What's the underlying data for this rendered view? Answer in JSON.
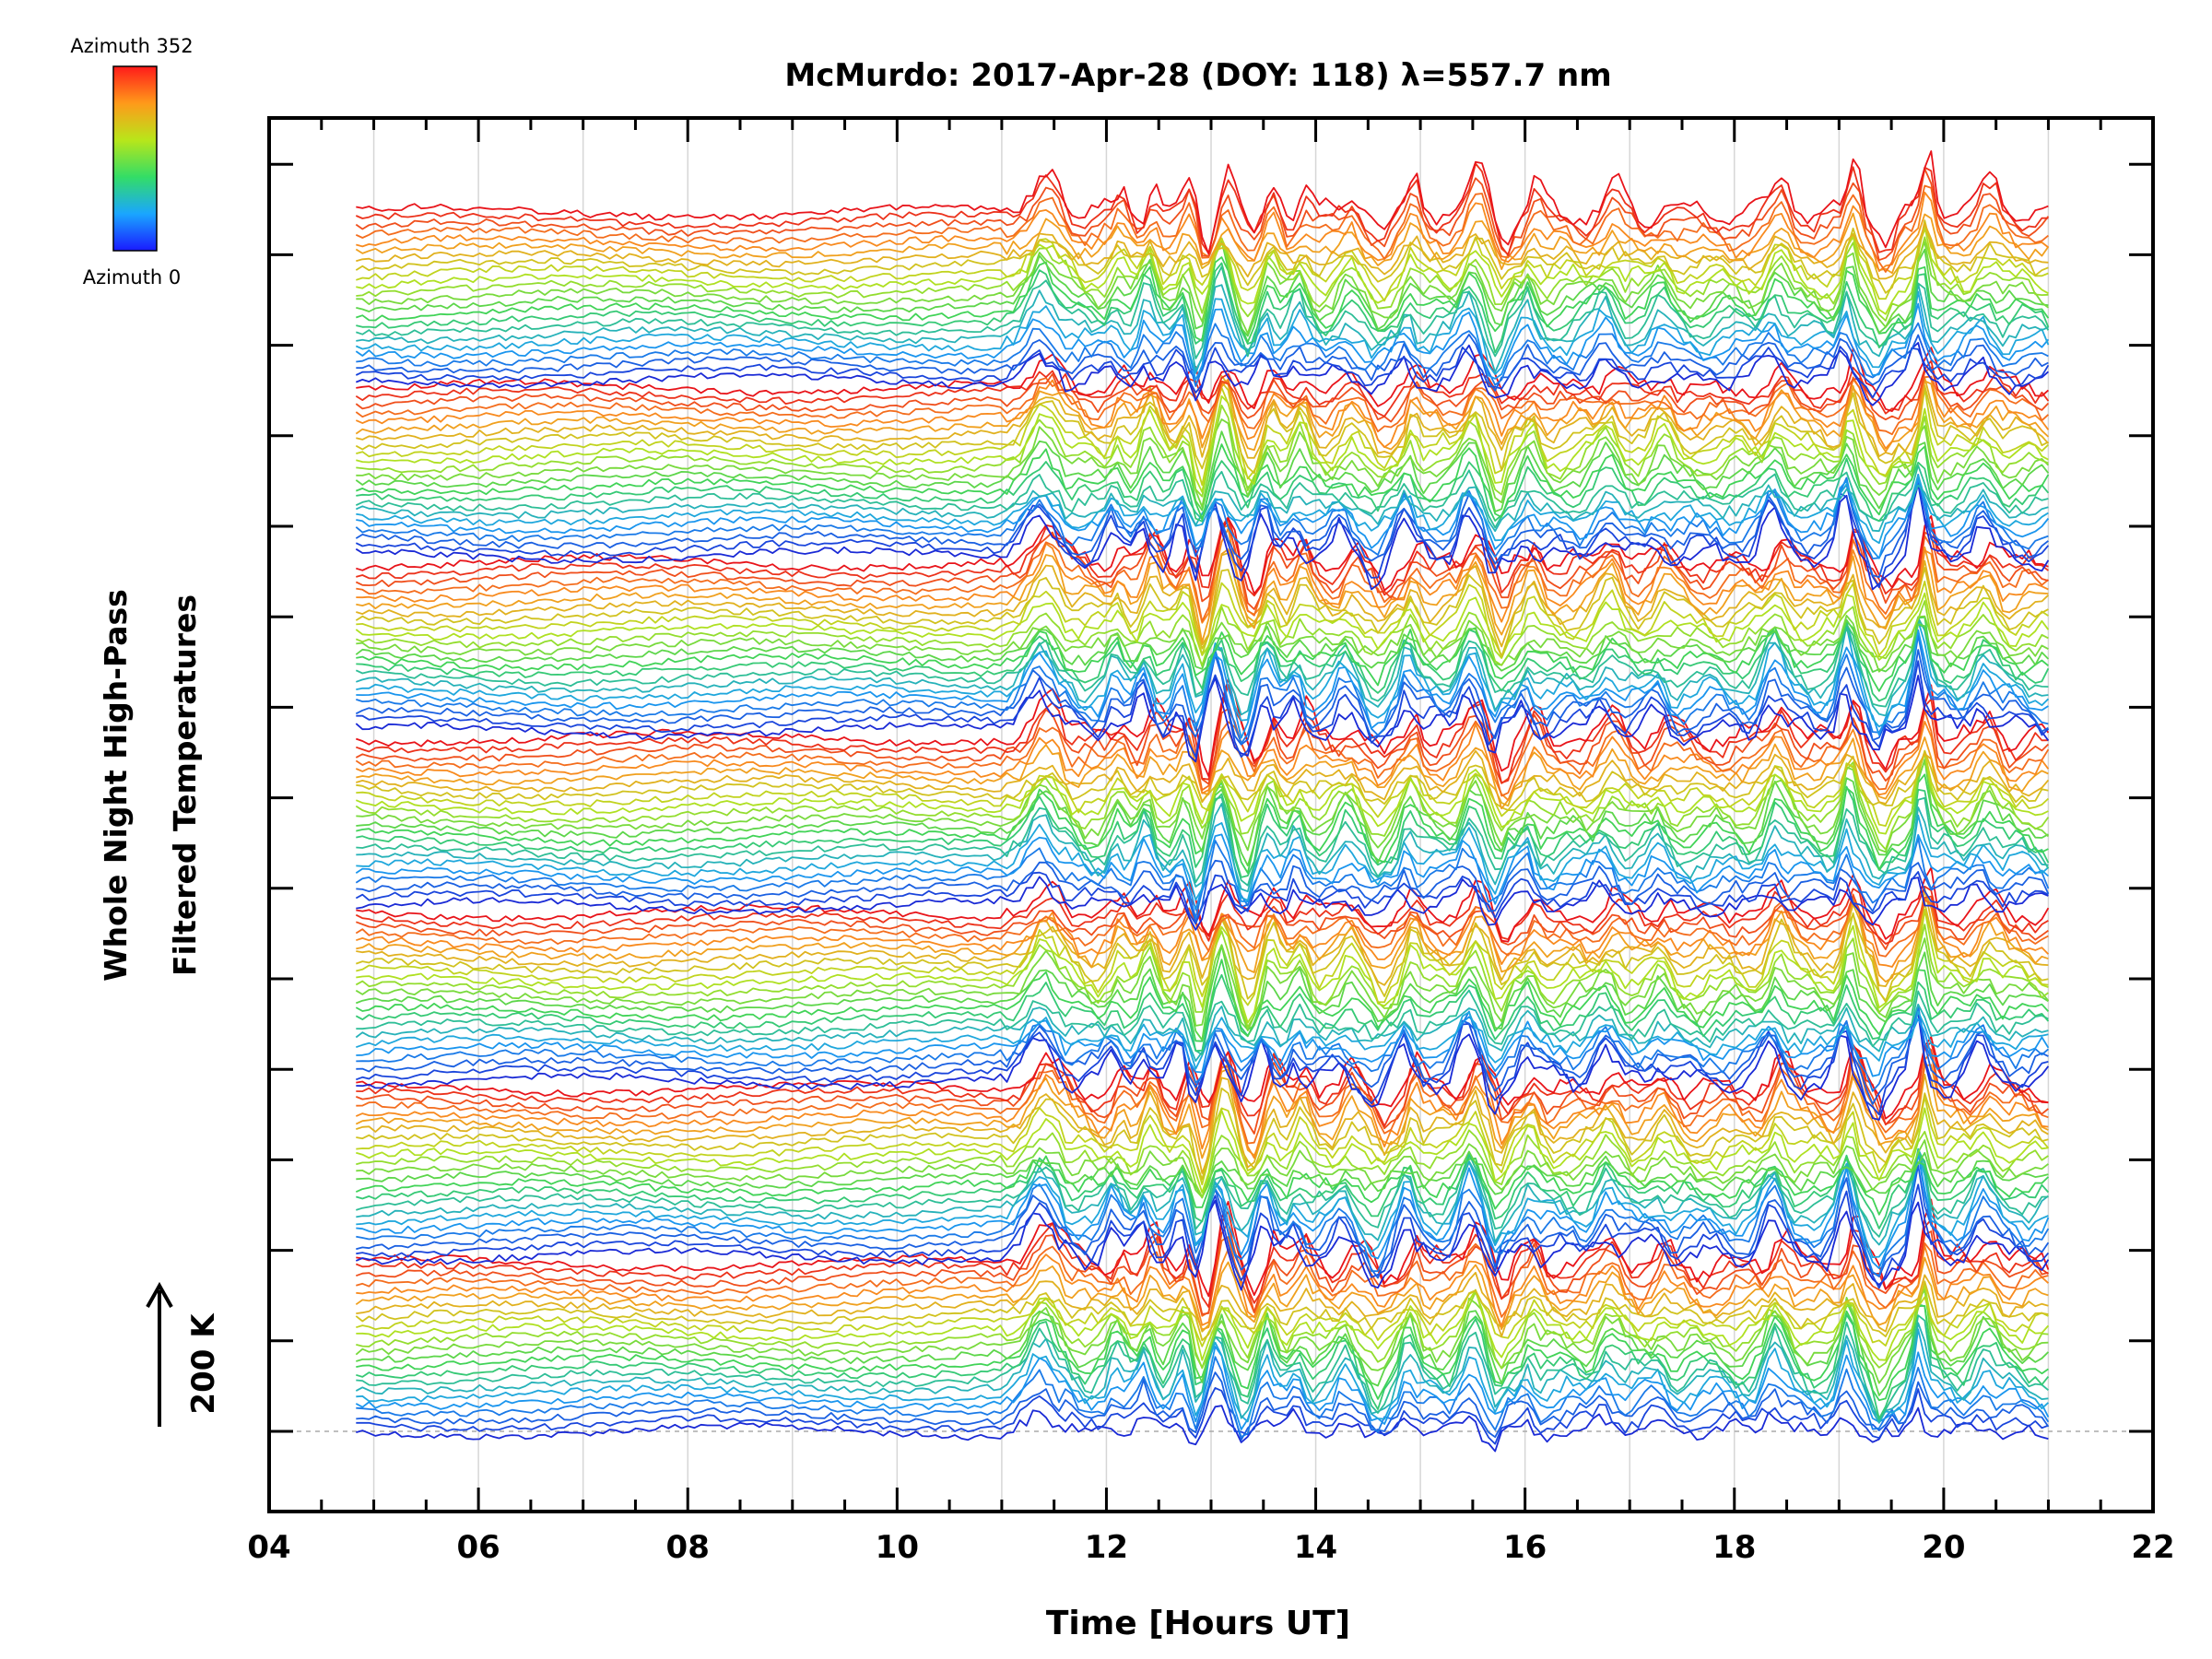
{
  "chart_data": {
    "type": "line",
    "title": "McMurdo: 2017-Apr-28 (DOY: 118) λ=557.7 nm",
    "xlabel": "Time [Hours UT]",
    "ylabel_line1": "Whole Night High-Pass",
    "ylabel_line2": "Filtered Temperatures",
    "scale_label": "200 K",
    "xlim": [
      4,
      22
    ],
    "x_ticks": [
      "04",
      "06",
      "08",
      "10",
      "12",
      "14",
      "16",
      "18",
      "20",
      "22"
    ],
    "x_tick_values": [
      4,
      6,
      8,
      10,
      12,
      14,
      16,
      18,
      20,
      22
    ],
    "data_range_hours": [
      4.83,
      21.0
    ],
    "vertical_gridlines": true,
    "colorbar": {
      "top_label": "Azimuth 352",
      "bottom_label": "Azimuth 0",
      "colormap": "rainbow (blue → green → yellow → red)",
      "min": 0,
      "max": 352
    },
    "stack": {
      "groups": 7,
      "traces_per_group": 23,
      "azimuth_step_deg": 16,
      "description": "Stacked, vertically offset high-pass filtered temperature traces colored by azimuth; quiet before ~11 UT, strong wave activity from ~11.3 to 21 UT with prominent peaks near 11.4, 13.1, 15.5, 19.1 and 19.8 UT."
    },
    "colors": {
      "azimuth_0": "#1c2bd6",
      "azimuth_mid": "#4cd64c",
      "azimuth_352": "#e8141a",
      "gridline": "#d6d6d6",
      "axes": "#000000"
    }
  }
}
